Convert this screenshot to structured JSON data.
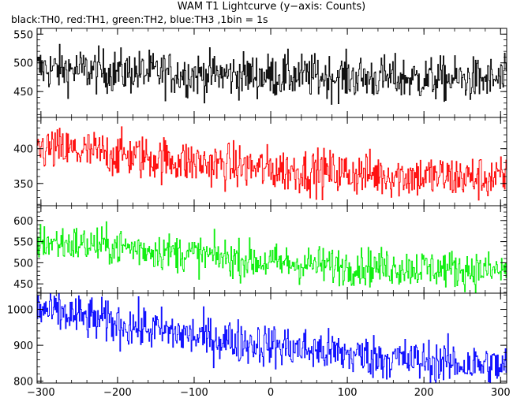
{
  "chart_data": {
    "type": "line",
    "title": "WAM T1 Lightcurve (y−axis: Counts)",
    "subtitle": "black:TH0, red:TH1, green:TH2, blue:TH3 ,1bin = 1s",
    "xlabel": "",
    "ylabel": "",
    "xlim": [
      -305,
      308
    ],
    "x_ticks": [
      -300,
      -200,
      -100,
      0,
      100,
      200,
      300
    ],
    "x_tick_labels": [
      "−300",
      "−200",
      "−100",
      "0",
      "100",
      "200",
      "300"
    ],
    "bin_seconds": 1,
    "grid": false,
    "panels": [
      {
        "name": "TH0",
        "color": "#000000",
        "ylim": [
          405,
          560
        ],
        "y_ticks": [
          450,
          500,
          550
        ],
        "trend": {
          "x": [
            -305,
            -200,
            -100,
            0,
            100,
            200,
            308
          ],
          "y": [
            490,
            485,
            480,
            478,
            475,
            472,
            470
          ]
        },
        "noise_sd": 19
      },
      {
        "name": "TH1",
        "color": "#ff0000",
        "ylim": [
          318,
          445
        ],
        "y_ticks": [
          350,
          400
        ],
        "trend": {
          "x": [
            -305,
            -200,
            -100,
            0,
            100,
            200,
            308
          ],
          "y": [
            400,
            392,
            380,
            370,
            365,
            360,
            357
          ]
        },
        "noise_sd": 16
      },
      {
        "name": "TH2",
        "color": "#00ee00",
        "ylim": [
          428,
          635
        ],
        "y_ticks": [
          450,
          500,
          550,
          600
        ],
        "trend": {
          "x": [
            -305,
            -200,
            -100,
            0,
            100,
            200,
            308
          ],
          "y": [
            550,
            538,
            520,
            500,
            492,
            488,
            480
          ]
        },
        "noise_sd": 22
      },
      {
        "name": "TH3",
        "color": "#0000ff",
        "ylim": [
          795,
          1045
        ],
        "y_ticks": [
          800,
          900,
          1000
        ],
        "y_tick_labels": [
          "800",
          "900",
          "1000"
        ],
        "trend": {
          "x": [
            -305,
            -200,
            -100,
            0,
            100,
            200,
            308
          ],
          "y": [
            1000,
            960,
            925,
            900,
            875,
            855,
            840
          ]
        },
        "noise_sd": 30
      }
    ]
  }
}
